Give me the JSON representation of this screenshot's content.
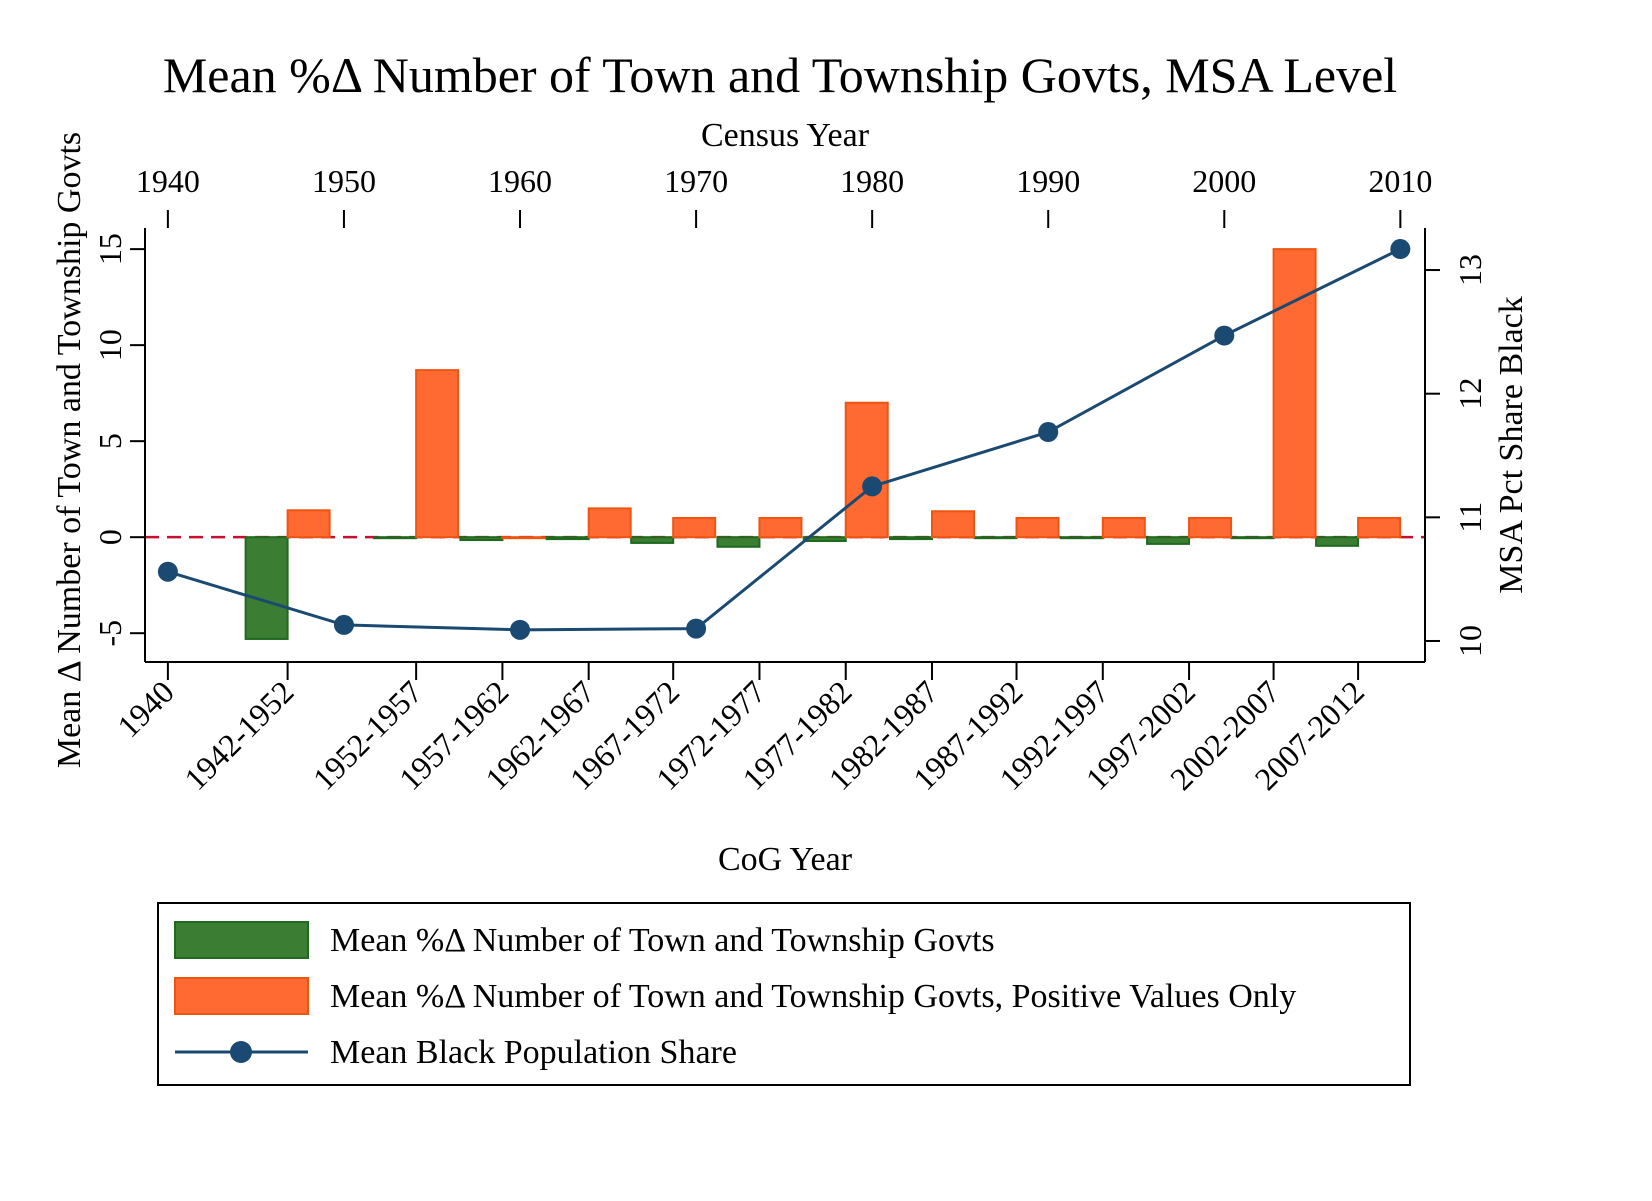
{
  "chart_data": {
    "type": "bar_line",
    "title": "Mean %Δ Number of Town and Township Govts, MSA Level",
    "x_label": "CoG Year",
    "x2_label": "Census Year",
    "y_label": "Mean Δ Number of Town and Township Govts",
    "y2_label": "MSA Pct Share Black",
    "xlim": [
      1938.7,
      2011.4
    ],
    "xticks": [
      {
        "value": 1940,
        "label": "1940"
      },
      {
        "value": 1946.8,
        "label": "1942-1952"
      },
      {
        "value": 1954.1,
        "label": "1952-1957"
      },
      {
        "value": 1959.0,
        "label": "1957-1962"
      },
      {
        "value": 1963.9,
        "label": "1962-1967"
      },
      {
        "value": 1968.7,
        "label": "1967-1972"
      },
      {
        "value": 1973.6,
        "label": "1972-1977"
      },
      {
        "value": 1978.5,
        "label": "1977-1982"
      },
      {
        "value": 1983.4,
        "label": "1982-1987"
      },
      {
        "value": 1988.2,
        "label": "1987-1992"
      },
      {
        "value": 1993.1,
        "label": "1992-1997"
      },
      {
        "value": 1998.0,
        "label": "1997-2002"
      },
      {
        "value": 2002.8,
        "label": "2002-2007"
      },
      {
        "value": 2007.6,
        "label": "2007-2012"
      }
    ],
    "x2ticks": [
      1940,
      1950,
      1960,
      1970,
      1980,
      1990,
      2000,
      2010
    ],
    "ylim": [
      -6.5,
      16.1
    ],
    "yticks": [
      -5,
      0,
      5,
      10,
      15
    ],
    "y2lim": [
      9.83,
      13.34
    ],
    "y2ticks": [
      10,
      11,
      12,
      13
    ],
    "hline": 0,
    "hline_color": "#c8102e",
    "series": [
      {
        "name": "Mean %Δ Number of Town and Township Govts",
        "type": "bar",
        "side": "left",
        "color": "#3a7d33",
        "edge": "#1f6a1f",
        "values": [
          null,
          -5.3,
          0,
          -0.15,
          -0.1,
          -0.3,
          -0.5,
          -0.2,
          -0.1,
          0,
          0,
          -0.35,
          0,
          -0.45
        ]
      },
      {
        "name": "Mean %Δ Number of Town and Township Govts, Positive Values Only",
        "type": "bar",
        "side": "right",
        "color": "#ff6a33",
        "edge": "#ee5511",
        "values": [
          null,
          1.4,
          8.7,
          0,
          1.5,
          1.0,
          1.0,
          7.0,
          1.35,
          1.0,
          1.0,
          1.0,
          15.0,
          1.0
        ]
      },
      {
        "name": "Mean Black Population Share",
        "type": "line",
        "axis": "y2",
        "color": "#1a4a72",
        "x": [
          1940,
          1950,
          1960,
          1970,
          1980,
          1990,
          2000,
          2010
        ],
        "values": [
          10.56,
          10.13,
          10.09,
          10.1,
          11.25,
          11.69,
          12.47,
          13.17
        ]
      }
    ]
  }
}
